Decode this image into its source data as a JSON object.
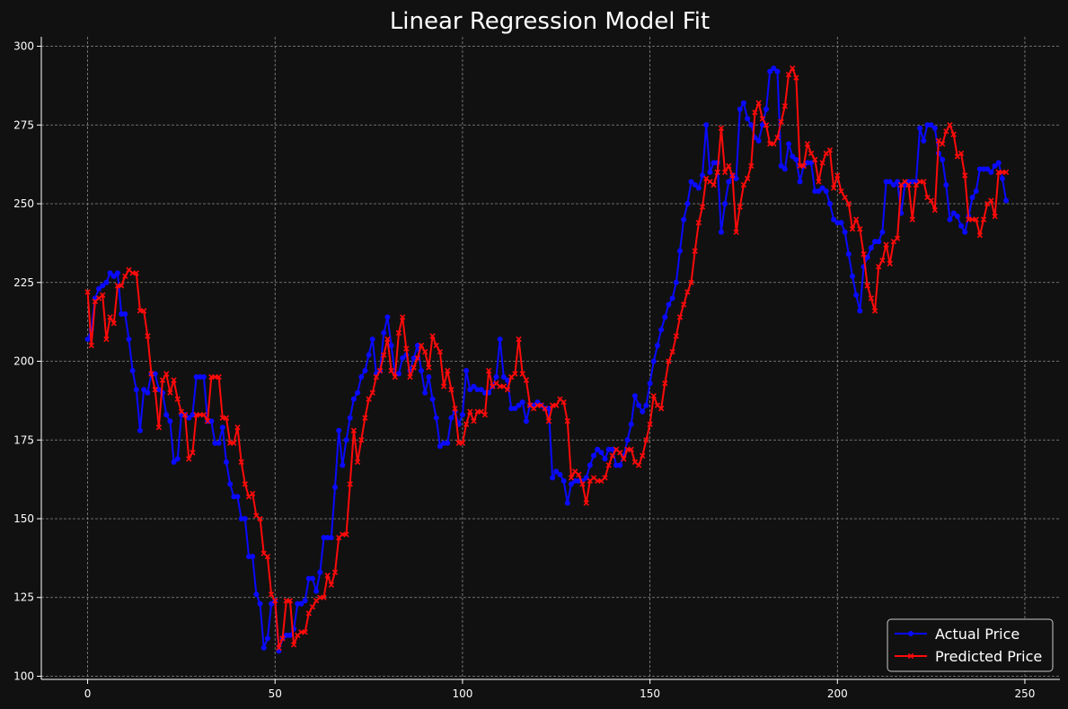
{
  "chart_data": {
    "type": "line",
    "title": "Linear Regression Model Fit",
    "xlabel": "",
    "ylabel": "",
    "xlim": [
      -12.35,
      259.35
    ],
    "ylim": [
      99,
      303
    ],
    "x_ticks": [
      0,
      50,
      100,
      150,
      200,
      250
    ],
    "y_ticks": [
      100,
      125,
      150,
      175,
      200,
      225,
      250,
      275,
      300
    ],
    "grid": true,
    "legend_position": "bottom-right",
    "background": "#111111",
    "series": [
      {
        "name": "Actual Price",
        "color": "#0a0aff",
        "marker": "circle",
        "values": [
          207,
          210,
          220,
          223,
          224,
          225,
          228,
          227,
          228,
          215,
          215,
          207,
          197,
          191,
          178,
          191,
          190,
          196,
          196,
          191,
          190,
          183,
          181,
          168,
          169,
          183,
          183,
          182,
          183,
          195,
          195,
          195,
          181,
          181,
          174,
          174,
          179,
          168,
          161,
          157,
          157,
          150,
          150,
          138,
          138,
          126,
          123,
          109,
          112,
          123,
          124,
          108,
          112,
          113,
          113,
          115,
          123,
          123,
          124,
          131,
          131,
          127,
          133,
          144,
          144,
          144,
          160,
          178,
          167,
          175,
          182,
          188,
          190,
          195,
          197,
          202,
          207,
          196,
          197,
          209,
          214,
          205,
          196,
          196,
          201,
          202,
          197,
          201,
          205,
          197,
          190,
          195,
          188,
          182,
          173,
          174,
          174,
          182,
          184,
          180,
          183,
          197,
          191,
          192,
          191,
          191,
          190,
          190,
          192,
          195,
          207,
          195,
          194,
          185,
          185,
          186,
          187,
          181,
          186,
          186,
          187,
          186,
          185,
          185,
          163,
          165,
          164,
          162,
          155,
          161,
          162,
          162,
          162,
          163,
          167,
          170,
          172,
          171,
          169,
          172,
          172,
          167,
          167,
          170,
          175,
          180,
          189,
          186,
          184,
          186,
          193,
          200,
          205,
          210,
          214,
          218,
          220,
          225,
          235,
          245,
          250,
          257,
          256,
          255,
          259,
          275,
          260,
          263,
          263,
          241,
          250,
          257,
          259,
          258,
          280,
          282,
          277,
          275,
          271,
          270,
          275,
          280,
          292,
          293,
          292,
          262,
          261,
          269,
          265,
          264,
          257,
          262,
          263,
          263,
          254,
          254,
          255,
          254,
          250,
          245,
          244,
          244,
          241,
          234,
          227,
          221,
          216,
          230,
          233,
          236,
          238,
          238,
          241,
          257,
          257,
          256,
          257,
          247,
          256,
          257,
          257,
          257,
          274,
          270,
          275,
          275,
          274,
          266,
          264,
          256,
          245,
          247,
          246,
          243,
          241,
          246,
          252,
          254,
          261,
          261,
          261,
          260,
          262,
          263,
          258,
          251
        ]
      },
      {
        "name": "Predicted Price",
        "color": "#ff0a0a",
        "marker": "x",
        "values": [
          222,
          205,
          219,
          220,
          221,
          207,
          214,
          212,
          224,
          224,
          227,
          229,
          228,
          228,
          216,
          216,
          208,
          196,
          191,
          179,
          194,
          196,
          190,
          194,
          188,
          184,
          183,
          169,
          171,
          183,
          183,
          183,
          181,
          195,
          195,
          195,
          182,
          182,
          174,
          174,
          179,
          168,
          161,
          157,
          158,
          151,
          150,
          139,
          138,
          126,
          124,
          109,
          112,
          124,
          124,
          110,
          113,
          114,
          114,
          120,
          122,
          124,
          125,
          125,
          132,
          129,
          133,
          144,
          145,
          145,
          161,
          178,
          168,
          175,
          182,
          188,
          190,
          195,
          197,
          202,
          207,
          197,
          195,
          209,
          214,
          204,
          195,
          198,
          201,
          205,
          203,
          198,
          208,
          205,
          203,
          192,
          197,
          191,
          185,
          174,
          174,
          180,
          184,
          181,
          184,
          184,
          183,
          197,
          192,
          193,
          192,
          192,
          191,
          195,
          196,
          207,
          196,
          194,
          186,
          185,
          186,
          186,
          185,
          181,
          186,
          186,
          188,
          187,
          181,
          163,
          165,
          164,
          161,
          155,
          162,
          163,
          162,
          162,
          163,
          167,
          170,
          172,
          171,
          169,
          172,
          172,
          168,
          167,
          170,
          175,
          180,
          189,
          186,
          185,
          193,
          200,
          203,
          208,
          214,
          218,
          222,
          225,
          235,
          244,
          249,
          258,
          257,
          256,
          260,
          274,
          260,
          262,
          259,
          241,
          249,
          256,
          258,
          262,
          279,
          282,
          277,
          275,
          269,
          269,
          271,
          276,
          281,
          291,
          293,
          290,
          262,
          262,
          269,
          266,
          264,
          257,
          263,
          266,
          267,
          255,
          259,
          254,
          252,
          250,
          242,
          245,
          242,
          234,
          224,
          220,
          216,
          230,
          232,
          237,
          231,
          238,
          239,
          256,
          257,
          256,
          245,
          256,
          257,
          257,
          252,
          251,
          248,
          270,
          269,
          273,
          275,
          272,
          265,
          266,
          259,
          245,
          245,
          245,
          240,
          245,
          250,
          251,
          246,
          260,
          260,
          260
        ]
      }
    ]
  }
}
